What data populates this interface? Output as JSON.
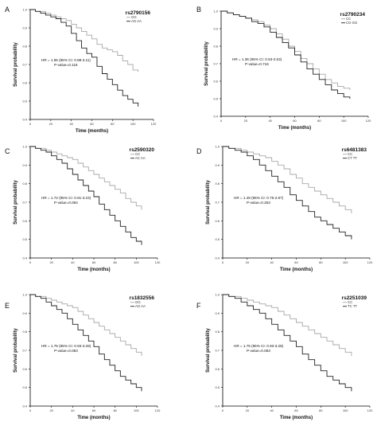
{
  "chart_data": [
    {
      "type": "line",
      "panel": "A",
      "title": "rs2790156",
      "xlabel": "Time (months)",
      "ylabel": "Survival probability",
      "xlim": [
        0,
        120
      ],
      "ylim": [
        0.4,
        1.0
      ],
      "xticks": [
        0,
        20,
        40,
        60,
        80,
        100,
        120
      ],
      "yticks": [
        0.4,
        0.5,
        0.6,
        0.7,
        0.8,
        0.9,
        1.0
      ],
      "legend_position": "top-right",
      "annotation": [
        "HR = 1.65 (95% CI: 0.88-3.11)",
        "P-value=0.118"
      ],
      "series": [
        {
          "name": "GG",
          "color": "#a8a8a8",
          "x": [
            0,
            5,
            10,
            15,
            20,
            25,
            30,
            35,
            40,
            45,
            50,
            55,
            60,
            65,
            70,
            75,
            80,
            85,
            90,
            95,
            100,
            105
          ],
          "y": [
            1.0,
            0.99,
            0.99,
            0.98,
            0.97,
            0.96,
            0.95,
            0.94,
            0.92,
            0.9,
            0.88,
            0.86,
            0.84,
            0.81,
            0.79,
            0.78,
            0.77,
            0.75,
            0.72,
            0.7,
            0.67,
            0.66
          ]
        },
        {
          "name": "AG AA",
          "color": "#222222",
          "x": [
            0,
            5,
            10,
            15,
            20,
            25,
            30,
            35,
            40,
            45,
            50,
            55,
            60,
            65,
            70,
            75,
            80,
            85,
            90,
            95,
            100,
            105
          ],
          "y": [
            1.0,
            0.99,
            0.98,
            0.97,
            0.96,
            0.95,
            0.93,
            0.91,
            0.87,
            0.83,
            0.79,
            0.76,
            0.74,
            0.69,
            0.65,
            0.62,
            0.59,
            0.56,
            0.53,
            0.51,
            0.49,
            0.47
          ]
        }
      ]
    },
    {
      "type": "line",
      "panel": "B",
      "title": "rs2790234",
      "xlabel": "Time (months)",
      "ylabel": "Survival probability",
      "xlim": [
        0,
        120
      ],
      "ylim": [
        0.4,
        1.0
      ],
      "xticks": [
        0,
        20,
        40,
        60,
        80,
        100,
        120
      ],
      "yticks": [
        0.4,
        0.5,
        0.6,
        0.7,
        0.8,
        0.9,
        1.0
      ],
      "legend_position": "top-right",
      "annotation": [
        "HR = 1.36 (95% CI: 0.53-2.53)",
        "P-value=0.716"
      ],
      "series": [
        {
          "name": "CC",
          "color": "#a8a8a8",
          "x": [
            0,
            5,
            10,
            15,
            20,
            25,
            30,
            35,
            40,
            45,
            50,
            55,
            60,
            65,
            70,
            75,
            80,
            85,
            90,
            95,
            100,
            105
          ],
          "y": [
            1.0,
            0.99,
            0.98,
            0.97,
            0.96,
            0.95,
            0.94,
            0.92,
            0.9,
            0.87,
            0.84,
            0.8,
            0.77,
            0.73,
            0.7,
            0.67,
            0.64,
            0.61,
            0.59,
            0.57,
            0.56,
            0.55
          ]
        },
        {
          "name": "CG GG",
          "color": "#222222",
          "x": [
            0,
            5,
            10,
            15,
            20,
            25,
            30,
            35,
            40,
            45,
            50,
            55,
            60,
            65,
            70,
            75,
            80,
            85,
            90,
            95,
            100,
            105
          ],
          "y": [
            1.0,
            0.99,
            0.98,
            0.97,
            0.96,
            0.94,
            0.93,
            0.91,
            0.88,
            0.85,
            0.82,
            0.79,
            0.75,
            0.71,
            0.67,
            0.64,
            0.61,
            0.58,
            0.55,
            0.53,
            0.51,
            0.5
          ]
        }
      ]
    },
    {
      "type": "line",
      "panel": "C",
      "title": "rs2590320",
      "xlabel": "Time (months)",
      "ylabel": "Survival probability",
      "xlim": [
        0,
        120
      ],
      "ylim": [
        0.4,
        1.0
      ],
      "xticks": [
        0,
        20,
        40,
        60,
        80,
        100,
        120
      ],
      "yticks": [
        0.4,
        0.5,
        0.6,
        0.7,
        0.8,
        0.9,
        1.0
      ],
      "legend_position": "top-right",
      "annotation": [
        "HR = 1.72 (95% CI: 0.91-3.23)",
        "P-value=0.094"
      ],
      "series": [
        {
          "name": "CC",
          "color": "#a8a8a8",
          "x": [
            0,
            5,
            10,
            15,
            20,
            25,
            30,
            35,
            40,
            45,
            50,
            55,
            60,
            65,
            70,
            75,
            80,
            85,
            90,
            95,
            100,
            105
          ],
          "y": [
            1.0,
            0.99,
            0.99,
            0.98,
            0.97,
            0.96,
            0.95,
            0.94,
            0.93,
            0.91,
            0.89,
            0.87,
            0.85,
            0.83,
            0.81,
            0.79,
            0.77,
            0.75,
            0.72,
            0.7,
            0.68,
            0.66
          ]
        },
        {
          "name": "AC AA",
          "color": "#222222",
          "x": [
            0,
            5,
            10,
            15,
            20,
            25,
            30,
            35,
            40,
            45,
            50,
            55,
            60,
            65,
            70,
            75,
            80,
            85,
            90,
            95,
            100,
            105
          ],
          "y": [
            1.0,
            0.99,
            0.98,
            0.97,
            0.95,
            0.93,
            0.91,
            0.88,
            0.85,
            0.82,
            0.79,
            0.76,
            0.73,
            0.69,
            0.66,
            0.63,
            0.6,
            0.57,
            0.54,
            0.51,
            0.49,
            0.47
          ]
        }
      ]
    },
    {
      "type": "line",
      "panel": "D",
      "title": "rs6481383",
      "xlabel": "Time (months)",
      "ylabel": "Survival probability",
      "xlim": [
        0,
        120
      ],
      "ylim": [
        0.4,
        1.0
      ],
      "xticks": [
        0,
        20,
        40,
        60,
        80,
        100,
        120
      ],
      "yticks": [
        0.4,
        0.5,
        0.6,
        0.7,
        0.8,
        0.9,
        1.0
      ],
      "legend_position": "top-right",
      "annotation": [
        "HR = 1.49 (95% CI: 0.75-2.97)",
        "P-value=0.253"
      ],
      "series": [
        {
          "name": "CC",
          "color": "#a8a8a8",
          "x": [
            0,
            5,
            10,
            15,
            20,
            25,
            30,
            35,
            40,
            45,
            50,
            55,
            60,
            65,
            70,
            75,
            80,
            85,
            90,
            95,
            100,
            105
          ],
          "y": [
            1.0,
            0.99,
            0.99,
            0.98,
            0.97,
            0.96,
            0.95,
            0.94,
            0.92,
            0.9,
            0.88,
            0.85,
            0.83,
            0.8,
            0.78,
            0.76,
            0.74,
            0.72,
            0.7,
            0.68,
            0.66,
            0.64
          ]
        },
        {
          "name": "CT TT",
          "color": "#222222",
          "x": [
            0,
            5,
            10,
            15,
            20,
            25,
            30,
            35,
            40,
            45,
            50,
            55,
            60,
            65,
            70,
            75,
            80,
            85,
            90,
            95,
            100,
            105
          ],
          "y": [
            1.0,
            0.99,
            0.98,
            0.97,
            0.95,
            0.93,
            0.9,
            0.87,
            0.84,
            0.81,
            0.78,
            0.74,
            0.71,
            0.68,
            0.65,
            0.62,
            0.6,
            0.58,
            0.56,
            0.54,
            0.52,
            0.5
          ]
        }
      ]
    },
    {
      "type": "line",
      "panel": "E",
      "title": "rs1832556",
      "xlabel": "Time (months)",
      "ylabel": "Survival probability",
      "xlim": [
        0,
        120
      ],
      "ylim": [
        0.4,
        1.0
      ],
      "xticks": [
        0,
        20,
        40,
        60,
        80,
        100,
        120
      ],
      "yticks": [
        0.4,
        0.5,
        0.6,
        0.7,
        0.8,
        0.9,
        1.0
      ],
      "legend_position": "top-right",
      "annotation": [
        "HR = 1.75 (95% CI: 0.93-3.28)",
        "P-value=0.083"
      ],
      "series": [
        {
          "name": "GG",
          "color": "#a8a8a8",
          "x": [
            0,
            5,
            10,
            15,
            20,
            25,
            30,
            35,
            40,
            45,
            50,
            55,
            60,
            65,
            70,
            75,
            80,
            85,
            90,
            95,
            100,
            105
          ],
          "y": [
            1.0,
            0.99,
            0.99,
            0.98,
            0.97,
            0.96,
            0.95,
            0.94,
            0.93,
            0.91,
            0.89,
            0.87,
            0.85,
            0.83,
            0.81,
            0.79,
            0.77,
            0.75,
            0.73,
            0.71,
            0.69,
            0.67
          ]
        },
        {
          "name": "AG AA",
          "color": "#222222",
          "x": [
            0,
            5,
            10,
            15,
            20,
            25,
            30,
            35,
            40,
            45,
            50,
            55,
            60,
            65,
            70,
            75,
            80,
            85,
            90,
            95,
            100,
            105
          ],
          "y": [
            1.0,
            0.99,
            0.98,
            0.96,
            0.94,
            0.92,
            0.9,
            0.87,
            0.84,
            0.81,
            0.78,
            0.75,
            0.72,
            0.68,
            0.65,
            0.62,
            0.59,
            0.56,
            0.54,
            0.52,
            0.5,
            0.48
          ]
        }
      ]
    },
    {
      "type": "line",
      "panel": "F",
      "title": "rs2251039",
      "xlabel": "Time (months)",
      "ylabel": "Survival probability",
      "xlim": [
        0,
        120
      ],
      "ylim": [
        0.4,
        1.0
      ],
      "xticks": [
        0,
        20,
        40,
        60,
        80,
        100,
        120
      ],
      "yticks": [
        0.4,
        0.5,
        0.6,
        0.7,
        0.8,
        0.9,
        1.0
      ],
      "legend_position": "top-right",
      "annotation": [
        "HR = 1.75 (95% CI: 0.93-3.28)",
        "P-value=0.083"
      ],
      "series": [
        {
          "name": "CC",
          "color": "#a8a8a8",
          "x": [
            0,
            5,
            10,
            15,
            20,
            25,
            30,
            35,
            40,
            45,
            50,
            55,
            60,
            65,
            70,
            75,
            80,
            85,
            90,
            95,
            100,
            105
          ],
          "y": [
            1.0,
            0.99,
            0.99,
            0.98,
            0.97,
            0.96,
            0.95,
            0.94,
            0.93,
            0.91,
            0.89,
            0.87,
            0.85,
            0.83,
            0.81,
            0.79,
            0.77,
            0.75,
            0.73,
            0.71,
            0.69,
            0.67
          ]
        },
        {
          "name": "TC TT",
          "color": "#222222",
          "x": [
            0,
            5,
            10,
            15,
            20,
            25,
            30,
            35,
            40,
            45,
            50,
            55,
            60,
            65,
            70,
            75,
            80,
            85,
            90,
            95,
            100,
            105
          ],
          "y": [
            1.0,
            0.99,
            0.98,
            0.96,
            0.94,
            0.92,
            0.9,
            0.87,
            0.84,
            0.81,
            0.78,
            0.75,
            0.72,
            0.68,
            0.65,
            0.62,
            0.59,
            0.56,
            0.54,
            0.52,
            0.5,
            0.48
          ]
        }
      ]
    }
  ]
}
